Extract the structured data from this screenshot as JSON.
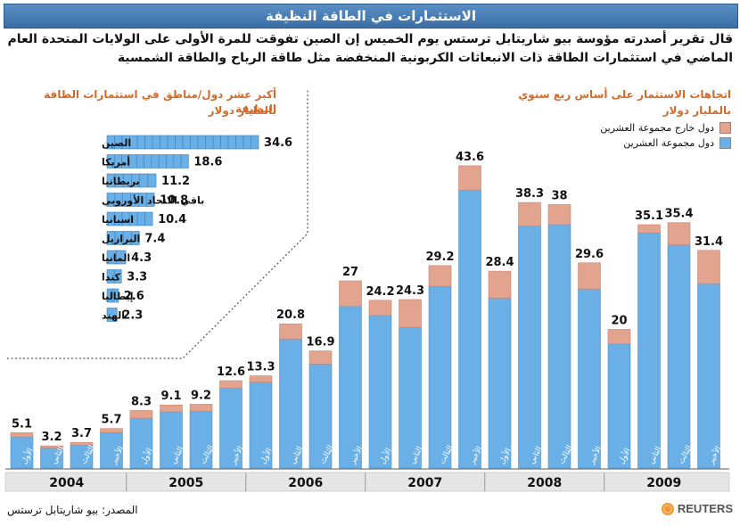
{
  "title": "الاستثمارات في الطاقة النظيفة",
  "intro": "قال تقرير أصدرته مؤوسة بيو شاريتابل ترستس يوم الخميس إن الصين تفوقت للمرة الأولى على الولايات المتحدة العام الماضي في استثمارات الطاقة ذات الانبعاثات الكربونية المنخفضة مثل طاقة الرياح والطاقة الشمسية",
  "source": "المصدر: بيو شاريتابل ترستس",
  "brand": "REUTERS",
  "colors": {
    "g20": "#6ab0e6",
    "non_g20": "#e2a48f",
    "title_bg": "#3a6ea5",
    "accent_orange": "#d46a2a"
  },
  "chart_data": [
    {
      "type": "bar",
      "stacked": true,
      "title": "اتجاهات الاستثمار على أساس ربع سنوي",
      "subtitle": "بالمليار دولار",
      "legend": [
        "دول خارج مجموعة العشرين",
        "دول مجموعة العشرين"
      ],
      "quarter_labels": [
        "الأول",
        "الثاني",
        "الثالث",
        "الأخير"
      ],
      "years": [
        "2004",
        "2005",
        "2006",
        "2007",
        "2008",
        "2009"
      ],
      "totals": [
        5.1,
        3.2,
        3.7,
        5.7,
        8.3,
        9.1,
        9.2,
        12.6,
        13.3,
        20.8,
        16.9,
        27,
        24.2,
        24.3,
        29.2,
        43.6,
        28.4,
        38.3,
        38,
        29.6,
        20,
        35.1,
        35.4,
        31.4
      ],
      "series": [
        {
          "name": "دول مجموعة العشرين",
          "values": [
            4.5,
            2.9,
            3.3,
            5.1,
            7.2,
            8.1,
            8.2,
            11.5,
            12.4,
            18.6,
            15.0,
            23.3,
            22.0,
            20.3,
            26.2,
            40.1,
            24.5,
            34.9,
            35.1,
            25.8,
            17.9,
            33.9,
            32.2,
            26.6
          ]
        },
        {
          "name": "دول خارج مجموعة العشرين",
          "values": [
            0.6,
            0.3,
            0.4,
            0.6,
            1.1,
            1.0,
            1.0,
            1.1,
            0.9,
            2.2,
            1.9,
            3.7,
            2.2,
            4.0,
            3.0,
            3.5,
            3.9,
            3.4,
            2.9,
            3.8,
            2.1,
            1.2,
            3.2,
            4.8
          ]
        }
      ],
      "ylim": [
        0,
        45
      ]
    },
    {
      "type": "bar",
      "orientation": "horizontal",
      "title": "أكبر عشر دول/مناطق في استثمارات الطاقة النظيفة",
      "subtitle": "بالمليار دولار",
      "categories": [
        "الصين",
        "أمريكا",
        "بريطانيا",
        "باقي الاتحاد الأوروبي",
        "اسبانيا",
        "البرازيل",
        "المانيا",
        "كندا",
        "إيطاليا",
        "الهند"
      ],
      "values": [
        34.6,
        18.6,
        11.2,
        10.8,
        10.4,
        7.4,
        4.3,
        3.3,
        2.6,
        2.3
      ],
      "xlim": [
        0,
        35
      ]
    }
  ]
}
